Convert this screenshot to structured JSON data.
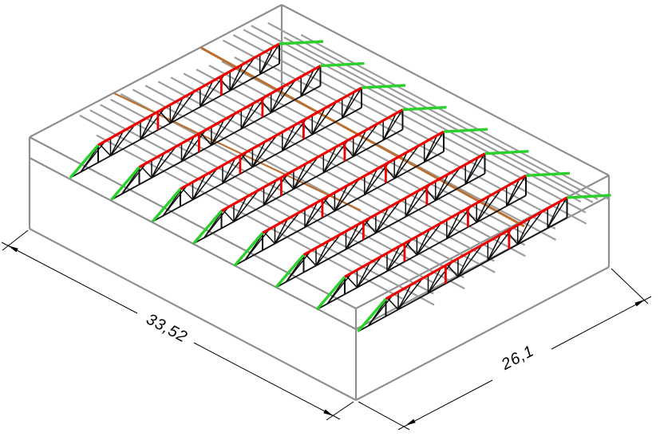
{
  "drawing": {
    "type": "isometric-roof-structure",
    "background": "#ffffff",
    "dimensions": {
      "length": {
        "label": "33,52"
      },
      "width": {
        "label": "26,1"
      }
    },
    "structure": {
      "truss_count": 8,
      "purlin_count": 22,
      "wind_brace_count": 2,
      "web_panels_per_truss": 7,
      "red_posts_per_truss": 2,
      "components": {
        "top_chord": "truss top chord",
        "bottom_chord": "truss bottom chord",
        "web": "truss web diagonal",
        "end_diagonal": "eave end diagonal",
        "outrigger": "peak outrigger",
        "purlin": "roof purlin",
        "wind_brace": "roof wind brace",
        "outline": "building outline"
      }
    },
    "colors": {
      "top_chord": "#ee0000",
      "red_post": "#ee0000",
      "end_diagonal": "#2bd02b",
      "outrigger": "#2bd02b",
      "wind_brace": "#bb7030",
      "purlin": "#9d9d9d",
      "outline": "#8f8f8f",
      "web": "#0d0d0d",
      "bottom_chord": "#111111",
      "dimension": "#000000"
    }
  }
}
